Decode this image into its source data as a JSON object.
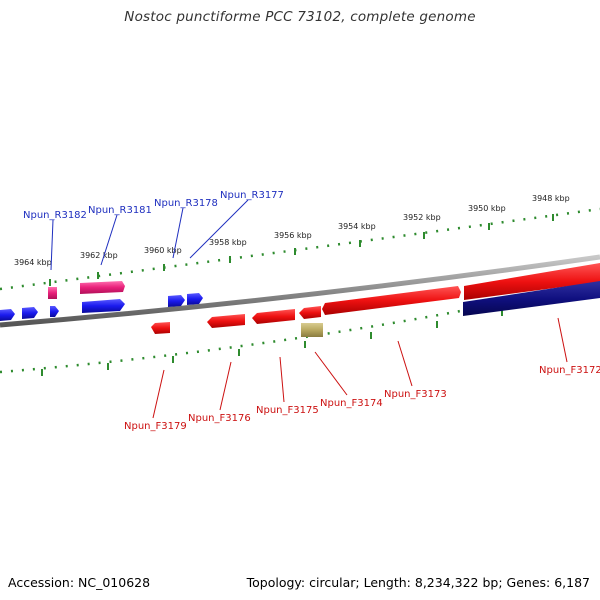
{
  "title": "Nostoc punctiforme PCC 73102, complete genome",
  "footer": {
    "accession": "Accession: NC_010628",
    "summary": "Topology: circular; Length: 8,234,322 bp; Genes: 6,187"
  },
  "colors": {
    "backbone": "#8a8a8a",
    "ruler": "#2e8b2e",
    "gene_red": "#ee1111",
    "gene_blue": "#1a1aee",
    "gene_navy": "#101080",
    "gene_pink": "#e8207a",
    "gene_olive": "#b8a860",
    "label_reverse": "#1f2fbf",
    "label_forward": "#cc1111"
  },
  "ruler_labels": [
    "3964 kbp",
    "3962 kbp",
    "3960 kbp",
    "3958 kbp",
    "3956 kbp",
    "3954 kbp",
    "3952 kbp",
    "3950 kbp",
    "3948 kbp"
  ],
  "gene_labels_reverse": [
    "Npun_R3182",
    "Npun_R3181",
    "Npun_R3178",
    "Npun_R3177"
  ],
  "gene_labels_forward": [
    "Npun_F3179",
    "Npun_F3176",
    "Npun_F3175",
    "Npun_F3174",
    "Npun_F3173",
    "Npun_F3172"
  ]
}
